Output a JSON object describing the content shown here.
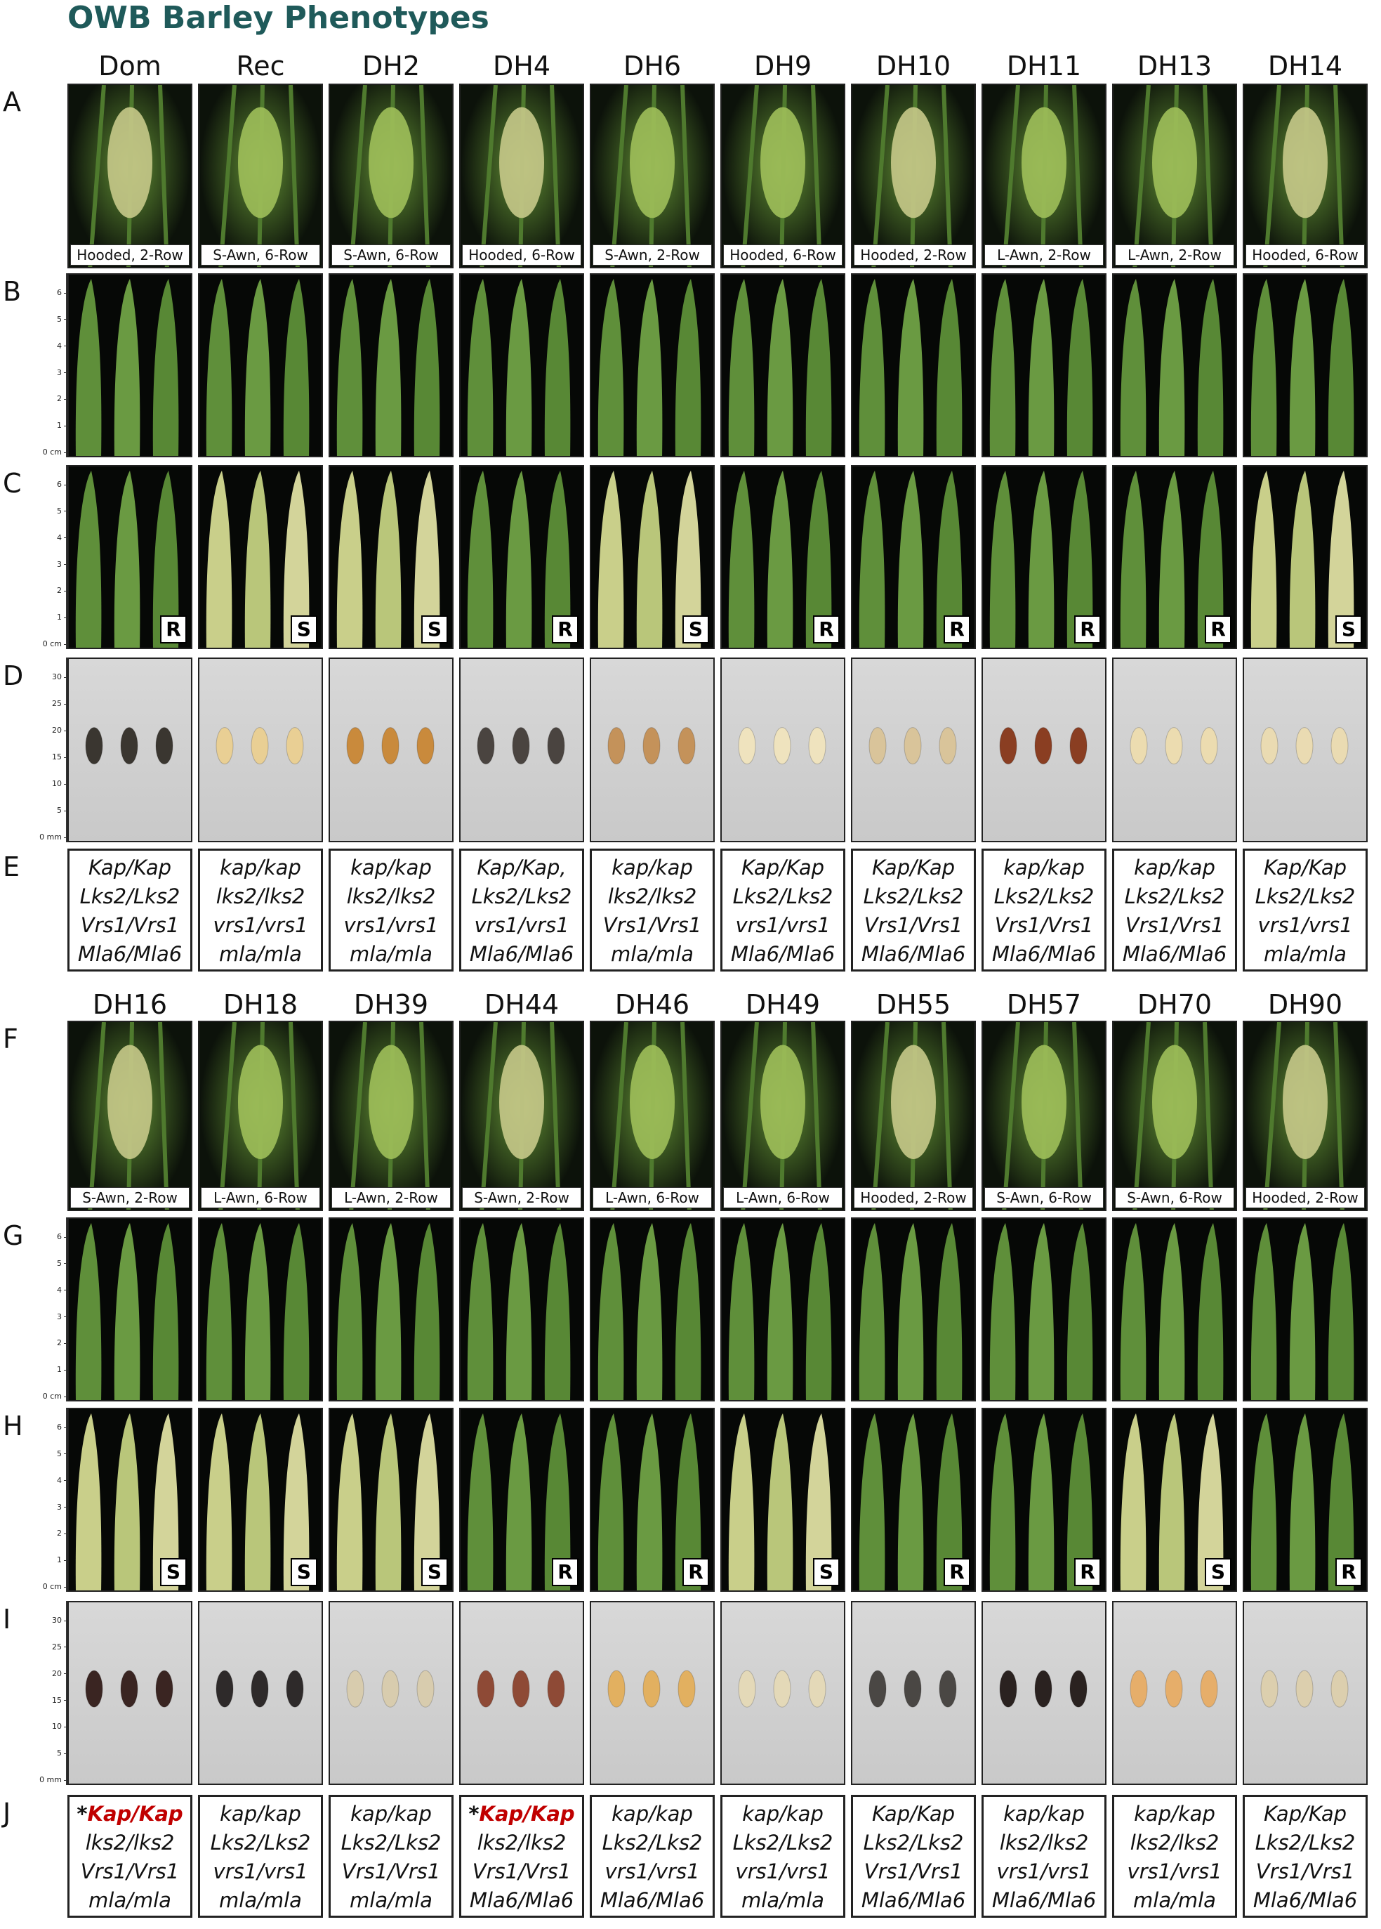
{
  "title": "OWB Barley Phenotypes",
  "row_labels": {
    "A": "A",
    "B": "B",
    "C": "C",
    "D": "D",
    "E": "E",
    "F": "F",
    "G": "G",
    "H": "H",
    "I": "I",
    "J": "J"
  },
  "leaf_ruler": {
    "unit_label": "0 cm",
    "ticks": [
      "1",
      "2",
      "3",
      "4",
      "5",
      "6"
    ]
  },
  "seed_ruler": {
    "unit_label": "0 mm",
    "ticks": [
      "5",
      "10",
      "15",
      "20",
      "25",
      "30"
    ]
  },
  "highlight_color": "#c00000",
  "top_half": [
    {
      "name": "Dom",
      "spike": "Hooded, 2-Row",
      "rs": "R",
      "genotype": [
        "Kap/Kap",
        "Lks2/Lks2",
        "Vrs1/Vrs1",
        "Mla6/Mla6"
      ],
      "seed_color": "#3a3630"
    },
    {
      "name": "Rec",
      "spike": "S-Awn, 6-Row",
      "rs": "S",
      "genotype": [
        "kap/kap",
        "lks2/lks2",
        "vrs1/vrs1",
        "mla/mla"
      ],
      "seed_color": "#e9cf94"
    },
    {
      "name": "DH2",
      "spike": "S-Awn, 6-Row",
      "rs": "S",
      "genotype": [
        "kap/kap",
        "lks2/lks2",
        "vrs1/vrs1",
        "mla/mla"
      ],
      "seed_color": "#c98a3c"
    },
    {
      "name": "DH4",
      "spike": "Hooded, 6-Row",
      "rs": "R",
      "genotype": [
        "Kap/Kap,",
        "Lks2/Lks2",
        "vrs1/vrs1",
        "Mla6/Mla6"
      ],
      "seed_color": "#4a4440"
    },
    {
      "name": "DH6",
      "spike": "S-Awn, 2-Row",
      "rs": "S",
      "genotype": [
        "kap/kap",
        "lks2/lks2",
        "Vrs1/Vrs1",
        "mla/mla"
      ],
      "seed_color": "#c4925a"
    },
    {
      "name": "DH9",
      "spike": "Hooded, 6-Row",
      "rs": "R",
      "genotype": [
        "Kap/Kap",
        "Lks2/Lks2",
        "vrs1/vrs1",
        "Mla6/Mla6"
      ],
      "seed_color": "#efe3be"
    },
    {
      "name": "DH10",
      "spike": "Hooded, 2-Row",
      "rs": "R",
      "genotype": [
        "Kap/Kap",
        "Lks2/Lks2",
        "Vrs1/Vrs1",
        "Mla6/Mla6"
      ],
      "seed_color": "#d9c49a"
    },
    {
      "name": "DH11",
      "spike": "L-Awn, 2-Row",
      "rs": "R",
      "genotype": [
        "kap/kap",
        "Lks2/Lks2",
        "Vrs1/Vrs1",
        "Mla6/Mla6"
      ],
      "seed_color": "#8a3e22"
    },
    {
      "name": "DH13",
      "spike": "L-Awn, 2-Row",
      "rs": "R",
      "genotype": [
        "kap/kap",
        "Lks2/Lks2",
        "Vrs1/Vrs1",
        "Mla6/Mla6"
      ],
      "seed_color": "#ecdcb0"
    },
    {
      "name": "DH14",
      "spike": "Hooded, 6-Row",
      "rs": "S",
      "genotype": [
        "Kap/Kap",
        "Lks2/Lks2",
        "vrs1/vrs1",
        "mla/mla"
      ],
      "seed_color": "#eadbb2"
    }
  ],
  "bottom_half": [
    {
      "name": "DH16",
      "spike": "S-Awn, 2-Row",
      "rs": "S",
      "genotype": [
        "Kap/Kap",
        "lks2/lks2",
        "Vrs1/Vrs1",
        "mla/mla"
      ],
      "asterisk": "*",
      "highlight_first": true,
      "seed_color": "#3a2522"
    },
    {
      "name": "DH18",
      "spike": "L-Awn, 6-Row",
      "rs": "S",
      "genotype": [
        "kap/kap",
        "Lks2/Lks2",
        "vrs1/vrs1",
        "mla/mla"
      ],
      "seed_color": "#2e2a2a"
    },
    {
      "name": "DH39",
      "spike": "L-Awn, 2-Row",
      "rs": "S",
      "genotype": [
        "kap/kap",
        "Lks2/Lks2",
        "Vrs1/Vrs1",
        "mla/mla"
      ],
      "seed_color": "#d8ccae"
    },
    {
      "name": "DH44",
      "spike": "S-Awn, 2-Row",
      "rs": "R",
      "genotype": [
        "Kap/Kap",
        "lks2/lks2",
        "Vrs1/Vrs1",
        "Mla6/Mla6"
      ],
      "asterisk": "*",
      "highlight_first": true,
      "seed_color": "#8e4a36"
    },
    {
      "name": "DH46",
      "spike": "L-Awn, 6-Row",
      "rs": "R",
      "genotype": [
        "kap/kap",
        "Lks2/Lks2",
        "vrs1/vrs1",
        "Mla6/Mla6"
      ],
      "seed_color": "#e2b060"
    },
    {
      "name": "DH49",
      "spike": "L-Awn, 6-Row",
      "rs": "S",
      "genotype": [
        "kap/kap",
        "Lks2/Lks2",
        "vrs1/vrs1",
        "mla/mla"
      ],
      "seed_color": "#e4d9b8"
    },
    {
      "name": "DH55",
      "spike": "Hooded, 2-Row",
      "rs": "R",
      "genotype": [
        "Kap/Kap",
        "Lks2/Lks2",
        "Vrs1/Vrs1",
        "Mla6/Mla6"
      ],
      "seed_color": "#4a4744"
    },
    {
      "name": "DH57",
      "spike": "S-Awn, 6-Row",
      "rs": "R",
      "genotype": [
        "kap/kap",
        "lks2/lks2",
        "vrs1/vrs1",
        "Mla6/Mla6"
      ],
      "seed_color": "#2a2220"
    },
    {
      "name": "DH70",
      "spike": "S-Awn, 6-Row",
      "rs": "S",
      "genotype": [
        "kap/kap",
        "lks2/lks2",
        "vrs1/vrs1",
        "mla/mla"
      ],
      "seed_color": "#e6ae6a"
    },
    {
      "name": "DH90",
      "spike": "Hooded, 2-Row",
      "rs": "R",
      "genotype": [
        "Kap/Kap",
        "Lks2/Lks2",
        "Vrs1/Vrs1",
        "Mla6/Mla6"
      ],
      "seed_color": "#dccfae"
    }
  ]
}
